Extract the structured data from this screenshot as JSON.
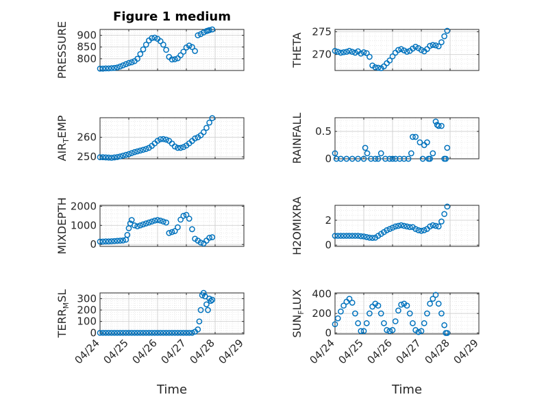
{
  "title": "Figure 1 medium",
  "marker_color": "#0072BD",
  "x_tick_labels": [
    "04/24",
    "04/25",
    "04/26",
    "04/27",
    "04/28",
    "04/29"
  ],
  "x_label": "Time",
  "chart_data": [
    {
      "type": "scatter",
      "title": "Figure 1 medium",
      "ylabel": "PRESSURE",
      "xlim": [
        0,
        5
      ],
      "ylim": [
        750,
        925
      ],
      "yticks": [
        800,
        850,
        900
      ],
      "grid": true,
      "minor_grid": true,
      "marker": "circle-open",
      "x": [
        0,
        0.1,
        0.2,
        0.3,
        0.4,
        0.5,
        0.6,
        0.7,
        0.8,
        0.9,
        1.0,
        1.1,
        1.2,
        1.3,
        1.4,
        1.5,
        1.6,
        1.7,
        1.8,
        1.9,
        2.0,
        2.1,
        2.2,
        2.3,
        2.4,
        2.5,
        2.6,
        2.7,
        2.8,
        2.9,
        3.0,
        3.1,
        3.2,
        3.3,
        3.4,
        3.5,
        3.6,
        3.7,
        3.75,
        3.8,
        3.9
      ],
      "y": [
        758,
        758,
        759,
        759,
        760,
        761,
        763,
        767,
        772,
        777,
        782,
        785,
        790,
        800,
        820,
        840,
        860,
        878,
        888,
        890,
        885,
        875,
        860,
        838,
        808,
        797,
        798,
        802,
        815,
        830,
        848,
        856,
        850,
        833,
        900,
        905,
        912,
        918,
        920,
        922,
        925
      ]
    },
    {
      "type": "scatter",
      "ylabel": "THETA",
      "xlim": [
        0,
        5
      ],
      "ylim": [
        266.5,
        275.5
      ],
      "yticks": [
        270,
        275
      ],
      "grid": true,
      "minor_grid": true,
      "marker": "circle-open",
      "x": [
        0,
        0.1,
        0.2,
        0.3,
        0.4,
        0.5,
        0.6,
        0.7,
        0.8,
        0.9,
        1.0,
        1.1,
        1.2,
        1.3,
        1.4,
        1.5,
        1.6,
        1.7,
        1.8,
        1.9,
        2.0,
        2.1,
        2.2,
        2.3,
        2.4,
        2.5,
        2.6,
        2.7,
        2.8,
        2.9,
        3.0,
        3.1,
        3.2,
        3.3,
        3.4,
        3.5,
        3.6,
        3.7,
        3.8,
        3.9
      ],
      "y": [
        270.8,
        270.6,
        270.4,
        270.5,
        270.6,
        270.8,
        270.6,
        270.4,
        270.7,
        270.2,
        270.5,
        270.3,
        269.5,
        267.6,
        267.2,
        267.1,
        267.0,
        267.4,
        268.1,
        268.7,
        269.6,
        270.4,
        271.0,
        271.2,
        270.9,
        270.6,
        270.8,
        271.3,
        271.7,
        271.4,
        271.0,
        270.7,
        271.2,
        271.9,
        272.1,
        272.0,
        271.8,
        272.7,
        274.0,
        275.2
      ]
    },
    {
      "type": "scatter",
      "ylabel": "AIR_TEMP",
      "xlim": [
        0,
        5
      ],
      "ylim": [
        249,
        270
      ],
      "yticks": [
        250,
        260
      ],
      "grid": true,
      "minor_grid": true,
      "marker": "circle-open",
      "x": [
        0,
        0.1,
        0.2,
        0.3,
        0.4,
        0.5,
        0.6,
        0.7,
        0.8,
        0.9,
        1.0,
        1.1,
        1.2,
        1.3,
        1.4,
        1.5,
        1.6,
        1.7,
        1.8,
        1.9,
        2.0,
        2.1,
        2.2,
        2.3,
        2.4,
        2.5,
        2.6,
        2.7,
        2.8,
        2.9,
        3.0,
        3.1,
        3.2,
        3.3,
        3.4,
        3.5,
        3.6,
        3.7,
        3.8,
        3.9
      ],
      "y": [
        249.8,
        249.8,
        249.7,
        249.6,
        249.5,
        249.7,
        249.9,
        250.2,
        250.6,
        251.0,
        251.4,
        251.9,
        252.4,
        252.8,
        253.2,
        253.6,
        254.0,
        254.6,
        255.6,
        256.9,
        258.2,
        259.0,
        259.1,
        258.8,
        258.2,
        256.8,
        255.3,
        254.6,
        254.6,
        255.0,
        255.8,
        256.9,
        258.1,
        259.4,
        260.0,
        261.0,
        262.6,
        264.8,
        267.5,
        269.8
      ]
    },
    {
      "type": "scatter",
      "ylabel": "RAINFALL",
      "xlim": [
        0,
        5
      ],
      "ylim": [
        0,
        0.75
      ],
      "yticks": [
        0,
        0.5
      ],
      "grid": true,
      "minor_grid": true,
      "marker": "circle-open",
      "x": [
        0,
        0.05,
        0.2,
        0.4,
        0.6,
        0.8,
        1.0,
        1.05,
        1.12,
        1.25,
        1.4,
        1.5,
        1.6,
        1.75,
        1.9,
        2.0,
        2.1,
        2.25,
        2.4,
        2.55,
        2.65,
        2.7,
        2.8,
        2.95,
        3.05,
        3.1,
        3.2,
        3.25,
        3.3,
        3.4,
        3.5,
        3.55,
        3.6,
        3.7,
        3.8,
        3.85,
        3.9
      ],
      "y": [
        0.1,
        0.0,
        0.0,
        0.0,
        0.0,
        0.0,
        0.0,
        0.2,
        0.1,
        0.0,
        0.0,
        0.0,
        0.1,
        0.0,
        0.0,
        0.0,
        0.0,
        0.0,
        0.0,
        0.0,
        0.1,
        0.4,
        0.4,
        0.3,
        0.0,
        0.25,
        0.3,
        0.0,
        0.0,
        0.1,
        0.68,
        0.62,
        0.6,
        0.6,
        0.0,
        0.0,
        0.2
      ]
    },
    {
      "type": "scatter",
      "ylabel": "MIXDEPTH",
      "xlim": [
        0,
        5
      ],
      "ylim": [
        -100,
        2050
      ],
      "yticks": [
        0,
        1000,
        2000
      ],
      "grid": true,
      "minor_grid": true,
      "marker": "circle-open",
      "x": [
        0,
        0.1,
        0.2,
        0.3,
        0.4,
        0.5,
        0.6,
        0.7,
        0.8,
        0.9,
        0.95,
        1.0,
        1.05,
        1.1,
        1.2,
        1.3,
        1.4,
        1.5,
        1.6,
        1.7,
        1.8,
        1.9,
        2.0,
        2.1,
        2.2,
        2.3,
        2.4,
        2.5,
        2.6,
        2.7,
        2.8,
        2.9,
        3.0,
        3.1,
        3.2,
        3.3,
        3.4,
        3.5,
        3.6,
        3.7,
        3.8,
        3.9
      ],
      "y": [
        150,
        150,
        160,
        160,
        170,
        180,
        190,
        200,
        210,
        250,
        500,
        850,
        1100,
        1280,
        1000,
        950,
        1000,
        1050,
        1100,
        1150,
        1200,
        1250,
        1280,
        1250,
        1200,
        1150,
        600,
        650,
        700,
        900,
        1300,
        1500,
        1550,
        1350,
        800,
        300,
        200,
        100,
        50,
        200,
        350,
        380
      ]
    },
    {
      "type": "scatter",
      "ylabel": "H2OMIXRA",
      "xlim": [
        0,
        5
      ],
      "ylim": [
        -0.1,
        3.2
      ],
      "yticks": [
        0,
        2
      ],
      "grid": true,
      "minor_grid": true,
      "marker": "circle-open",
      "x": [
        0,
        0.1,
        0.2,
        0.3,
        0.4,
        0.5,
        0.6,
        0.7,
        0.8,
        0.9,
        1.0,
        1.1,
        1.2,
        1.3,
        1.4,
        1.5,
        1.6,
        1.7,
        1.8,
        1.9,
        2.0,
        2.1,
        2.2,
        2.3,
        2.4,
        2.5,
        2.6,
        2.7,
        2.8,
        2.9,
        3.0,
        3.1,
        3.2,
        3.3,
        3.4,
        3.5,
        3.6,
        3.7,
        3.8,
        3.9
      ],
      "y": [
        0.75,
        0.75,
        0.75,
        0.75,
        0.75,
        0.75,
        0.75,
        0.75,
        0.75,
        0.72,
        0.7,
        0.65,
        0.6,
        0.58,
        0.6,
        0.75,
        0.9,
        1.05,
        1.2,
        1.3,
        1.4,
        1.5,
        1.55,
        1.6,
        1.55,
        1.5,
        1.45,
        1.45,
        1.3,
        1.2,
        1.15,
        1.2,
        1.3,
        1.5,
        1.6,
        1.55,
        1.5,
        1.9,
        2.5,
        3.1
      ]
    },
    {
      "type": "scatter",
      "ylabel": "TERR_MSL",
      "xlim": [
        0,
        5
      ],
      "ylim": [
        -10,
        350
      ],
      "yticks": [
        0,
        100,
        200,
        300
      ],
      "grid": true,
      "minor_grid": true,
      "marker": "circle-open",
      "x": [
        0,
        0.1,
        0.2,
        0.3,
        0.4,
        0.5,
        0.6,
        0.7,
        0.8,
        0.9,
        1.0,
        1.1,
        1.2,
        1.3,
        1.4,
        1.5,
        1.6,
        1.7,
        1.8,
        1.9,
        2.0,
        2.1,
        2.2,
        2.3,
        2.4,
        2.5,
        2.6,
        2.7,
        2.8,
        2.9,
        3.0,
        3.1,
        3.2,
        3.3,
        3.4,
        3.45,
        3.5,
        3.55,
        3.6,
        3.65,
        3.7,
        3.75,
        3.8,
        3.85,
        3.9
      ],
      "y": [
        0,
        0,
        0,
        0,
        0,
        0,
        0,
        0,
        0,
        0,
        0,
        0,
        0,
        0,
        0,
        0,
        0,
        0,
        0,
        0,
        0,
        0,
        0,
        0,
        0,
        0,
        0,
        0,
        0,
        0,
        0,
        0,
        0,
        10,
        30,
        100,
        200,
        330,
        350,
        320,
        250,
        200,
        300,
        280,
        290
      ]
    },
    {
      "type": "scatter",
      "ylabel": "SUN_FLUX",
      "xlim": [
        0,
        5
      ],
      "ylim": [
        -10,
        410
      ],
      "yticks": [
        0,
        200,
        400
      ],
      "grid": true,
      "minor_grid": true,
      "marker": "circle-open",
      "x": [
        0,
        0.1,
        0.2,
        0.3,
        0.4,
        0.5,
        0.6,
        0.7,
        0.8,
        0.9,
        1.0,
        1.1,
        1.2,
        1.3,
        1.4,
        1.5,
        1.6,
        1.7,
        1.8,
        1.9,
        2.0,
        2.1,
        2.2,
        2.3,
        2.4,
        2.5,
        2.6,
        2.7,
        2.8,
        2.9,
        3.0,
        3.1,
        3.2,
        3.3,
        3.4,
        3.5,
        3.6,
        3.7,
        3.8,
        3.85,
        3.9
      ],
      "y": [
        90,
        150,
        220,
        280,
        320,
        350,
        310,
        200,
        100,
        20,
        20,
        100,
        200,
        270,
        300,
        280,
        200,
        100,
        30,
        20,
        30,
        120,
        230,
        290,
        300,
        280,
        200,
        100,
        30,
        10,
        20,
        100,
        200,
        300,
        350,
        390,
        300,
        200,
        80,
        0,
        0
      ]
    }
  ]
}
